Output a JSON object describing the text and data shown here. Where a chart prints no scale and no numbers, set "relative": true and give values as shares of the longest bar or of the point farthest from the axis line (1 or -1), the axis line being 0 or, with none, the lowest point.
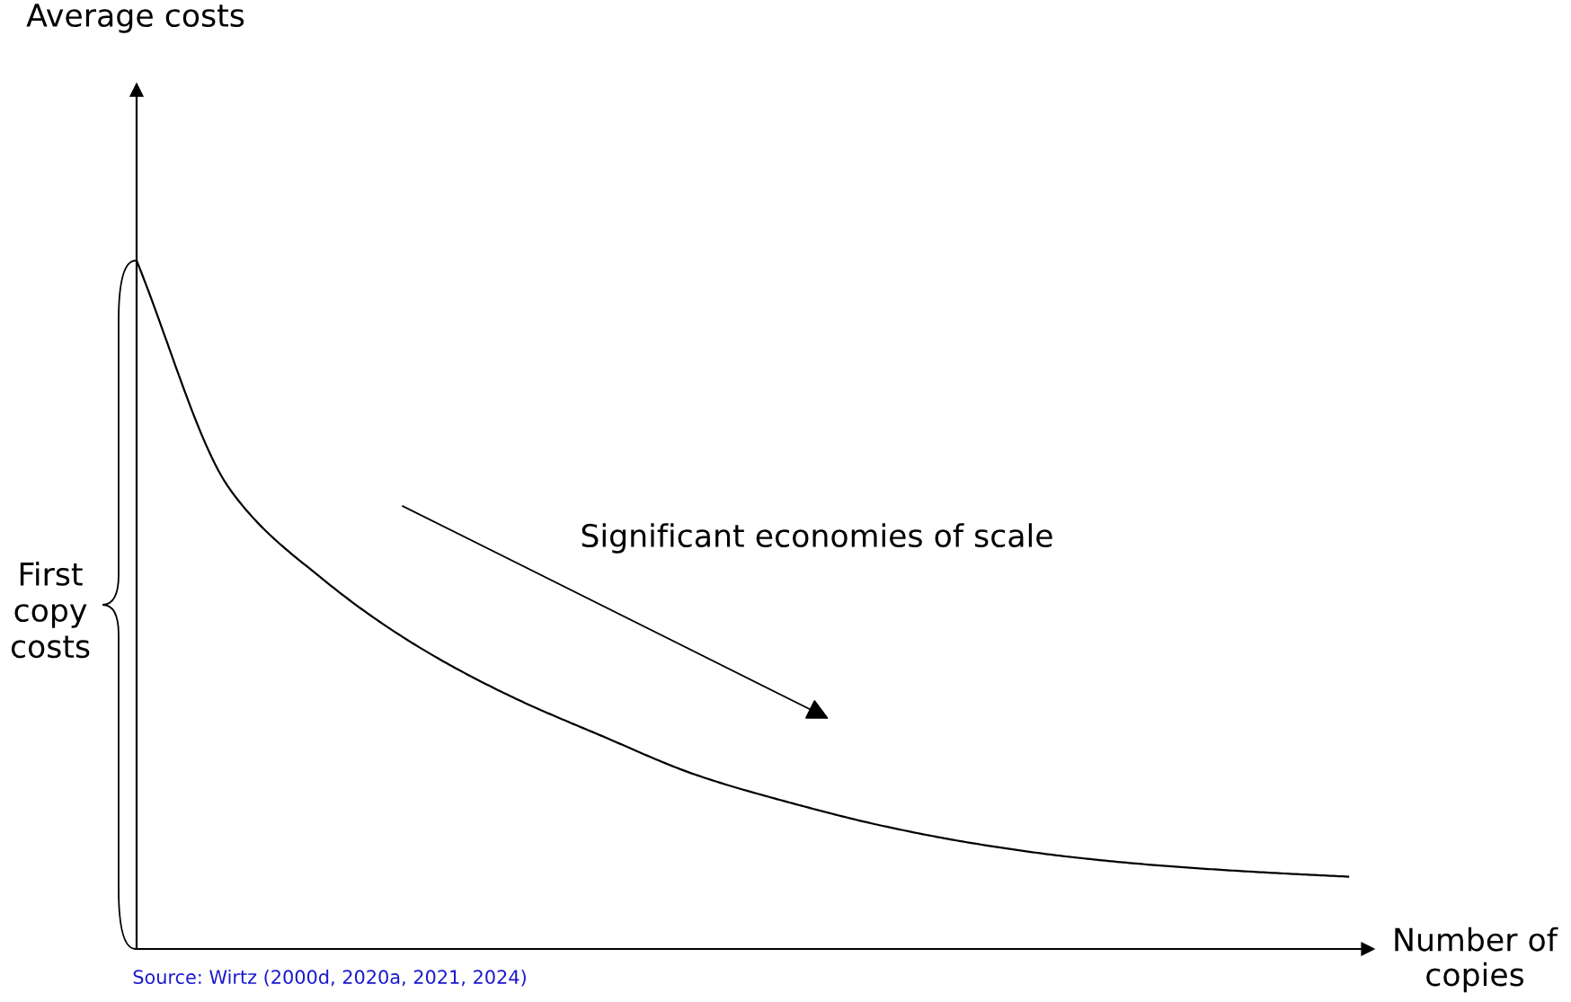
{
  "chart_data": {
    "type": "line",
    "relative": true,
    "marker": "none",
    "line_style": "solid",
    "xlabel": "Number of\ncopies",
    "categories": [
      null,
      null,
      null,
      null,
      null,
      null,
      null,
      null,
      null,
      null,
      null,
      null,
      null,
      null
    ],
    "series": [
      {
        "color": "#000000",
        "values": [
          1.0,
          0.668,
          0.537,
          0.441,
          0.368,
          0.309,
          0.253,
          0.213,
          0.179,
          0.153,
          0.134,
          0.121,
          0.112,
          0.105
        ]
      }
    ],
    "annotations": [
      "Average costs",
      "Significant economies of scale",
      "First\ncopy\ncosts",
      "Source: Wirtz (2000d, 2020a, 2021, 2024)"
    ]
  }
}
